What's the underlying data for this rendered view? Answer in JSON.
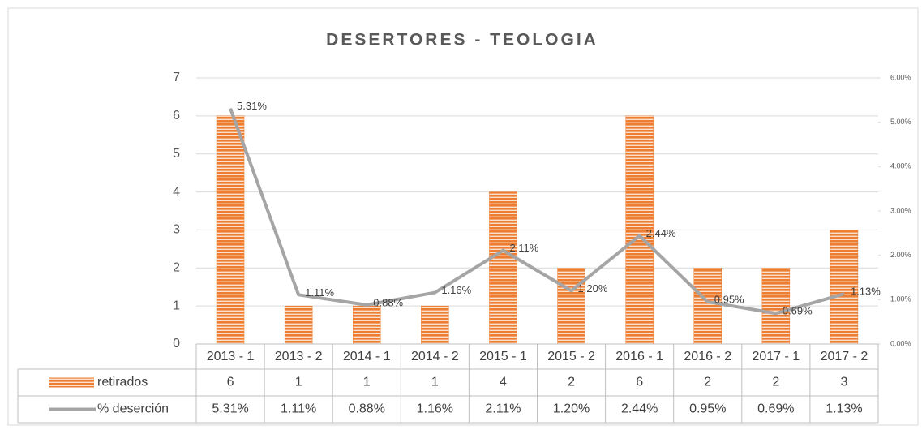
{
  "chart_data": {
    "type": "bar",
    "title": "DESERTORES  - TEOLOGIA",
    "categories": [
      "2013 - 1",
      "2013 - 2",
      "2014 - 1",
      "2014 - 2",
      "2015 - 1",
      "2015 - 2",
      "2016 - 1",
      "2016 - 2",
      "2017 - 1",
      "2017 - 2"
    ],
    "series": [
      {
        "name": "retirados",
        "color": "#ed7d31",
        "values": [
          6,
          1,
          1,
          1,
          4,
          2,
          6,
          2,
          2,
          3
        ]
      },
      {
        "name": "% deserción",
        "type": "line",
        "axis": "y2",
        "color": "#a5a5a5",
        "values": [
          5.31,
          1.11,
          0.88,
          1.16,
          2.11,
          1.2,
          2.44,
          0.95,
          0.69,
          1.13
        ],
        "value_labels": [
          "5.31%",
          "1.11%",
          "0.88%",
          "1.16%",
          "2.11%",
          "1.20%",
          "2.44%",
          "0.95%",
          "0.69%",
          "1.13%"
        ]
      }
    ],
    "ylim": [
      0,
      7
    ],
    "yticks": [
      0,
      1,
      2,
      3,
      4,
      5,
      6,
      7
    ],
    "y2lim": [
      0,
      6
    ],
    "y2ticks": [
      {
        "value": 0,
        "label": "0.00%"
      },
      {
        "value": 1,
        "label": "1.00%"
      },
      {
        "value": 2,
        "label": "2.00%"
      },
      {
        "value": 3,
        "label": "3.00%"
      },
      {
        "value": 4,
        "label": "4.00%"
      },
      {
        "value": 5,
        "label": "5.00%"
      },
      {
        "value": 6,
        "label": "6.00%"
      }
    ],
    "grid": true,
    "data_table": true
  }
}
